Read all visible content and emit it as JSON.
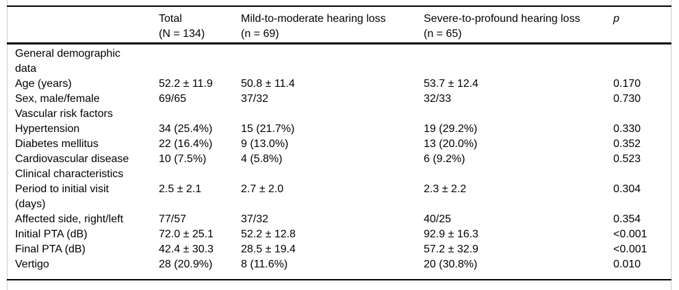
{
  "table": {
    "columns": [
      {
        "label": "",
        "sub": ""
      },
      {
        "label": "Total",
        "sub": "(N = 134)"
      },
      {
        "label": "Mild-to-moderate hearing loss",
        "sub": "(n = 69)"
      },
      {
        "label": "Severe-to-profound hearing loss",
        "sub": "(n = 65)"
      },
      {
        "label": "p",
        "sub": ""
      }
    ],
    "rows": [
      {
        "type": "section",
        "label": "General demographic\ndata",
        "values": [
          "",
          "",
          "",
          ""
        ]
      },
      {
        "type": "data",
        "label": "Age (years)",
        "values": [
          "52.2 ± 11.9",
          "50.8 ± 11.4",
          "53.7 ± 12.4",
          "0.170"
        ]
      },
      {
        "type": "data",
        "label": "Sex, male/female",
        "values": [
          "69/65",
          "37/32",
          "32/33",
          "0.730"
        ]
      },
      {
        "type": "section",
        "label": "Vascular risk factors",
        "values": [
          "",
          "",
          "",
          ""
        ]
      },
      {
        "type": "data",
        "label": "Hypertension",
        "values": [
          "34 (25.4%)",
          "15 (21.7%)",
          "19 (29.2%)",
          "0.330"
        ]
      },
      {
        "type": "data",
        "label": "Diabetes mellitus",
        "values": [
          "22 (16.4%)",
          "9 (13.0%)",
          "13 (20.0%)",
          "0.352"
        ]
      },
      {
        "type": "data",
        "label": "Cardiovascular disease",
        "values": [
          "10 (7.5%)",
          "4 (5.8%)",
          "6 (9.2%)",
          "0.523"
        ]
      },
      {
        "type": "section",
        "label": "Clinical characteristics",
        "values": [
          "",
          "",
          "",
          ""
        ]
      },
      {
        "type": "data",
        "label": "Period to initial visit\n(days)",
        "values": [
          "2.5 ± 2.1",
          "2.7 ± 2.0",
          "2.3 ± 2.2",
          "0.304"
        ]
      },
      {
        "type": "data",
        "label": "Affected side, right/left",
        "values": [
          "77/57",
          "37/32",
          "40/25",
          "0.354"
        ]
      },
      {
        "type": "data",
        "label": "Initial PTA (dB)",
        "values": [
          "72.0 ± 25.1",
          "52.2 ± 12.8",
          "92.9 ± 16.3",
          "<0.001"
        ]
      },
      {
        "type": "data",
        "label": "Final PTA (dB)",
        "values": [
          "42.4 ± 30.3",
          "28.5 ± 19.4",
          "57.2 ± 32.9",
          "<0.001"
        ]
      },
      {
        "type": "data",
        "label": "Vertigo",
        "values": [
          "28 (20.9%)",
          "8 (11.6%)",
          "20 (30.8%)",
          "0.010"
        ]
      }
    ]
  },
  "colors": {
    "rule": "#000000",
    "frame_line": "#cccccc",
    "text": "#000000",
    "background": "#ffffff"
  }
}
